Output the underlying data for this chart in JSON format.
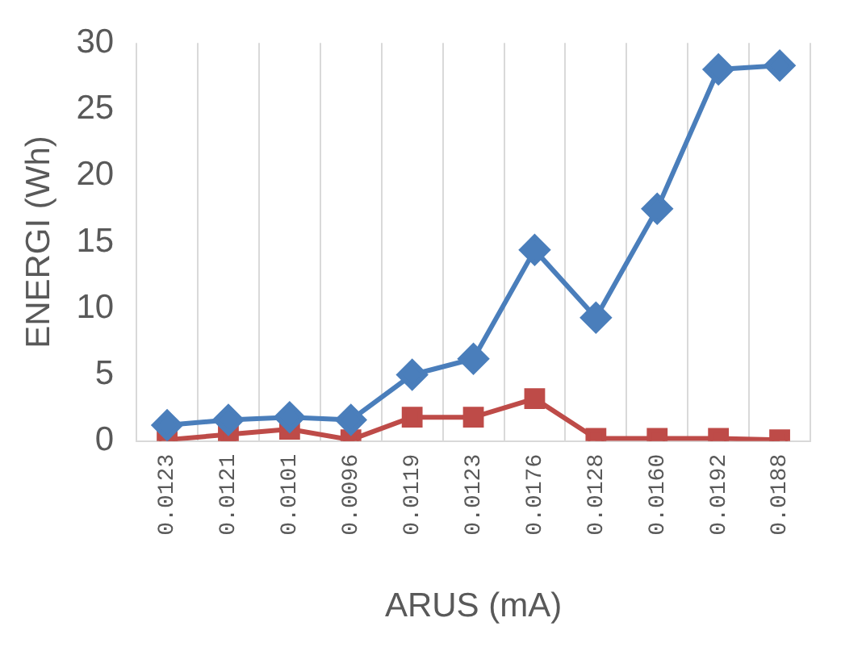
{
  "chart_data": {
    "type": "line",
    "xlabel": "ARUS (mA)",
    "ylabel": "ENERGI (Wh)",
    "categories": [
      "0.0123",
      "0.0121",
      "0.0101",
      "0.0096",
      "0.0119",
      "0.0123",
      "0.0176",
      "0.0128",
      "0.0160",
      "0.0192",
      "0.0188"
    ],
    "series": [
      {
        "color": "#4a7ebb",
        "marker": "diamond",
        "values": [
          1.2,
          1.6,
          1.8,
          1.6,
          5.0,
          6.2,
          14.4,
          9.3,
          17.5,
          28.0,
          28.3
        ]
      },
      {
        "color": "#be4b48",
        "marker": "square",
        "values": [
          0.1,
          0.5,
          0.9,
          0.1,
          1.8,
          1.8,
          3.2,
          0.2,
          0.2,
          0.2,
          0.1
        ]
      }
    ],
    "ylim": [
      0,
      30
    ],
    "yticks": [
      0,
      5,
      10,
      15,
      20,
      25,
      30
    ],
    "grid": "x",
    "legend": false
  }
}
